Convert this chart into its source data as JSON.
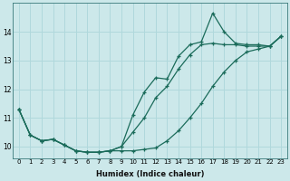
{
  "xlabel": "Humidex (Indice chaleur)",
  "bg_color": "#cce8ea",
  "grid_color": "#b0d8dc",
  "line_color": "#1a6b5a",
  "xlim": [
    -0.5,
    23.5
  ],
  "ylim": [
    9.6,
    15.0
  ],
  "x": [
    0,
    1,
    2,
    3,
    4,
    5,
    6,
    7,
    8,
    9,
    10,
    11,
    12,
    13,
    14,
    15,
    16,
    17,
    18,
    19,
    20,
    21,
    22,
    23
  ],
  "line1": [
    11.3,
    10.4,
    10.2,
    10.25,
    10.05,
    9.85,
    9.8,
    9.8,
    9.85,
    9.85,
    9.85,
    9.9,
    9.95,
    10.2,
    10.55,
    11.0,
    11.5,
    12.1,
    12.6,
    13.0,
    13.3,
    13.4,
    13.5,
    13.85
  ],
  "line2": [
    11.3,
    10.4,
    10.2,
    10.25,
    10.05,
    9.85,
    9.8,
    9.8,
    9.85,
    10.0,
    10.5,
    11.0,
    11.7,
    12.1,
    12.7,
    13.2,
    13.55,
    13.6,
    13.55,
    13.55,
    13.5,
    13.5,
    13.5,
    13.85
  ],
  "line3": [
    11.3,
    10.4,
    10.2,
    10.25,
    10.05,
    9.85,
    9.8,
    9.8,
    9.85,
    10.0,
    11.1,
    11.9,
    12.4,
    12.35,
    13.15,
    13.55,
    13.65,
    14.65,
    14.0,
    13.6,
    13.55,
    13.55,
    13.5,
    13.85
  ],
  "yticks": [
    10,
    11,
    12,
    13,
    14
  ],
  "xticks": [
    0,
    1,
    2,
    3,
    4,
    5,
    6,
    7,
    8,
    9,
    10,
    11,
    12,
    13,
    14,
    15,
    16,
    17,
    18,
    19,
    20,
    21,
    22,
    23
  ]
}
